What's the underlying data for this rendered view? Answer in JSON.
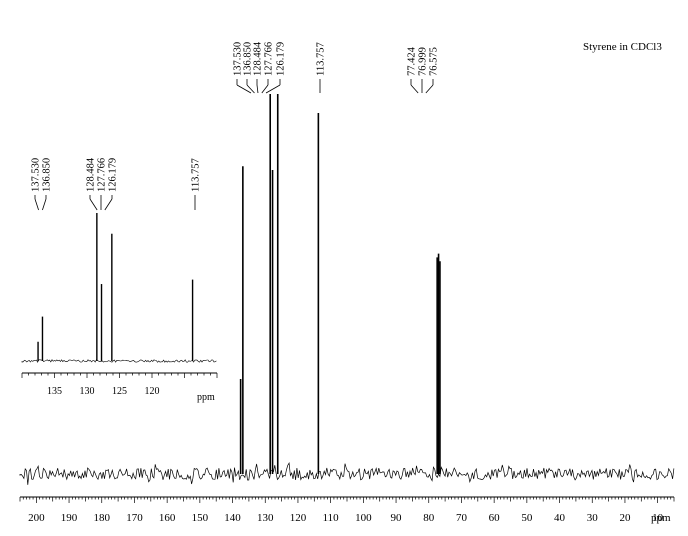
{
  "chart_data": {
    "type": "line",
    "title": "Styrene in CDCl3",
    "xlabel": "ppm",
    "xlim": [
      205,
      5
    ],
    "x_reversed": true,
    "ticks": [
      200,
      190,
      180,
      170,
      160,
      150,
      140,
      130,
      120,
      110,
      100,
      90,
      80,
      70,
      60,
      50,
      40,
      30,
      20,
      10
    ],
    "tick_labels": [
      "200",
      "190",
      "180",
      "170",
      "160",
      "150",
      "140",
      "130",
      "120",
      "110",
      "100",
      "90",
      "80",
      "70",
      "60",
      "50",
      "40",
      "30",
      "20",
      "10"
    ],
    "peaks": [
      {
        "x": 137.53,
        "intensity": 0.25
      },
      {
        "x": 136.85,
        "intensity": 0.81
      },
      {
        "x": 128.484,
        "intensity": 1.0
      },
      {
        "x": 127.766,
        "intensity": 0.8
      },
      {
        "x": 126.179,
        "intensity": 1.0
      },
      {
        "x": 113.757,
        "intensity": 0.95
      },
      {
        "x": 77.424,
        "intensity": 0.57
      },
      {
        "x": 76.999,
        "intensity": 0.58
      },
      {
        "x": 76.575,
        "intensity": 0.56
      }
    ],
    "peak_labels": [
      "137.530",
      "136.850",
      "128.484",
      "127.766",
      "126.179",
      "113.757",
      "77.424",
      "76.999",
      "76.575"
    ],
    "inset": {
      "xlabel": "ppm",
      "xlim": [
        140,
        110
      ],
      "ticks": [
        135,
        130,
        125,
        120
      ],
      "tick_labels": [
        "135",
        "130",
        "125",
        "120"
      ],
      "peaks": [
        {
          "x": 137.53,
          "intensity": 0.13
        },
        {
          "x": 136.85,
          "intensity": 0.3
        },
        {
          "x": 128.484,
          "intensity": 1.0
        },
        {
          "x": 127.766,
          "intensity": 0.52
        },
        {
          "x": 126.179,
          "intensity": 0.86
        },
        {
          "x": 113.757,
          "intensity": 0.55
        }
      ],
      "peak_labels": [
        "137.530",
        "136.850",
        "128.484",
        "127.766",
        "126.179",
        "113.757"
      ]
    }
  }
}
